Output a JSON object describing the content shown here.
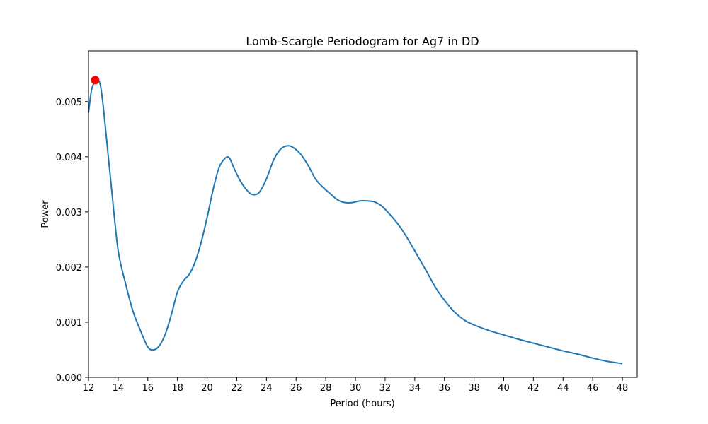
{
  "chart_data": {
    "type": "line",
    "title": "Lomb-Scargle Periodogram for Ag7 in DD",
    "xlabel": "Period (hours)",
    "ylabel": "Power",
    "xlim": [
      12,
      49
    ],
    "ylim": [
      0,
      0.00592
    ],
    "grid": false,
    "xticks": [
      "12",
      "14",
      "16",
      "18",
      "20",
      "22",
      "24",
      "26",
      "28",
      "30",
      "32",
      "34",
      "36",
      "38",
      "40",
      "42",
      "44",
      "46",
      "48"
    ],
    "yticks": [
      "0.000",
      "0.001",
      "0.002",
      "0.003",
      "0.004",
      "0.005"
    ],
    "line_color": "#1f77b4",
    "marker_color": "#ff0000",
    "series": [
      {
        "x": [
          12.0,
          12.2,
          12.4,
          12.6,
          12.8,
          13.0,
          13.3,
          13.6,
          14.0,
          14.5,
          15.0,
          15.5,
          16.0,
          16.4,
          16.8,
          17.2,
          17.6,
          18.0,
          18.4,
          18.8,
          19.2,
          19.6,
          20.0,
          20.4,
          20.8,
          21.2,
          21.5,
          21.8,
          22.2,
          22.6,
          23.0,
          23.5,
          24.0,
          24.5,
          25.0,
          25.5,
          25.9,
          26.3,
          26.8,
          27.3,
          27.8,
          28.3,
          28.8,
          29.3,
          29.8,
          30.3,
          30.8,
          31.3,
          31.8,
          32.4,
          33.0,
          33.6,
          34.2,
          34.8,
          35.4,
          36.0,
          36.7,
          37.4,
          38.0,
          39.0,
          40.0,
          41.0,
          42.0,
          43.0,
          44.0,
          45.0,
          46.0,
          47.0,
          48.0
        ],
        "y": [
          0.0048,
          0.0052,
          0.00535,
          0.0054,
          0.0053,
          0.0049,
          0.0041,
          0.0033,
          0.0023,
          0.0017,
          0.0012,
          0.00085,
          0.00055,
          0.0005,
          0.00058,
          0.0008,
          0.00115,
          0.00155,
          0.00175,
          0.00187,
          0.0021,
          0.00245,
          0.0029,
          0.0034,
          0.0038,
          0.00397,
          0.00398,
          0.0038,
          0.00358,
          0.00342,
          0.00332,
          0.00335,
          0.0036,
          0.00395,
          0.00415,
          0.0042,
          0.00415,
          0.00405,
          0.00385,
          0.0036,
          0.00345,
          0.00333,
          0.00322,
          0.00317,
          0.00317,
          0.0032,
          0.0032,
          0.00318,
          0.0031,
          0.00293,
          0.00273,
          0.00248,
          0.0022,
          0.00192,
          0.00163,
          0.0014,
          0.00118,
          0.00103,
          0.00095,
          0.00085,
          0.00077,
          0.00069,
          0.00062,
          0.00055,
          0.00048,
          0.00042,
          0.00035,
          0.00029,
          0.00025
        ]
      }
    ],
    "peak": {
      "x": 12.45,
      "y": 0.00539
    }
  }
}
